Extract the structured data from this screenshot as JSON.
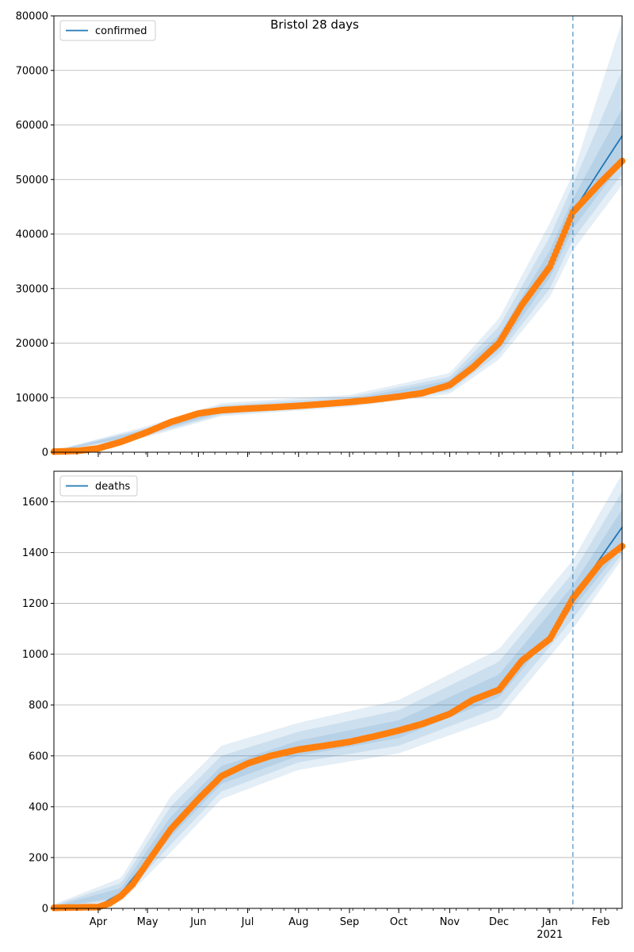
{
  "figure": {
    "title": "Bristol 28 days"
  },
  "colors": {
    "model": "#1f77b4",
    "observed": "#ff7f0e",
    "band": "#1f77b4",
    "grid": "#b0b0b0"
  },
  "x_axis": {
    "month_labels": [
      {
        "date": "2020-04-01",
        "label": "Apr"
      },
      {
        "date": "2020-05-01",
        "label": "May"
      },
      {
        "date": "2020-06-01",
        "label": "Jun"
      },
      {
        "date": "2020-07-01",
        "label": "Jul"
      },
      {
        "date": "2020-08-01",
        "label": "Aug"
      },
      {
        "date": "2020-09-01",
        "label": "Sep"
      },
      {
        "date": "2020-10-01",
        "label": "Oct"
      },
      {
        "date": "2020-11-01",
        "label": "Nov"
      },
      {
        "date": "2020-12-01",
        "label": "Dec"
      },
      {
        "date": "2021-01-01",
        "label": "Jan"
      },
      {
        "date": "2021-02-01",
        "label": "Feb"
      }
    ],
    "year_label": "2021",
    "range": [
      "2020-03-05",
      "2021-02-14"
    ]
  },
  "chart_data": [
    {
      "type": "line",
      "panel": "top",
      "title": "Bristol 28 days",
      "legend": {
        "label": "confirmed",
        "placement": "top-left"
      },
      "ylim": [
        0,
        80000
      ],
      "yticks": [
        0,
        10000,
        20000,
        30000,
        40000,
        50000,
        60000,
        70000,
        80000
      ],
      "grid": "horizontal",
      "forecast_start": "2021-01-15",
      "series": [
        {
          "name": "confirmed",
          "kind": "model",
          "points": [
            [
              "2020-03-05",
              150
            ],
            [
              "2020-03-20",
              300
            ],
            [
              "2020-04-01",
              700
            ],
            [
              "2020-04-15",
              2000
            ],
            [
              "2020-05-01",
              3800
            ],
            [
              "2020-05-15",
              5600
            ],
            [
              "2020-06-01",
              7000
            ],
            [
              "2020-06-15",
              7700
            ],
            [
              "2020-07-01",
              8100
            ],
            [
              "2020-07-15",
              8300
            ],
            [
              "2020-08-01",
              8600
            ],
            [
              "2020-08-15",
              8900
            ],
            [
              "2020-09-01",
              9300
            ],
            [
              "2020-09-15",
              9700
            ],
            [
              "2020-10-01",
              10300
            ],
            [
              "2020-10-15",
              11000
            ],
            [
              "2020-11-01",
              12500
            ],
            [
              "2020-11-15",
              15500
            ],
            [
              "2020-12-01",
              20000
            ],
            [
              "2020-12-15",
              27000
            ],
            [
              "2021-01-01",
              34000
            ],
            [
              "2021-01-15",
              44000
            ],
            [
              "2021-02-01",
              52000
            ],
            [
              "2021-02-14",
              58000
            ]
          ]
        },
        {
          "name": "",
          "kind": "observed",
          "points": [
            [
              "2020-03-05",
              100
            ],
            [
              "2020-03-20",
              250
            ],
            [
              "2020-04-01",
              700
            ],
            [
              "2020-04-15",
              1900
            ],
            [
              "2020-05-01",
              3700
            ],
            [
              "2020-05-15",
              5500
            ],
            [
              "2020-06-01",
              7100
            ],
            [
              "2020-06-15",
              7700
            ],
            [
              "2020-07-01",
              8000
            ],
            [
              "2020-07-15",
              8200
            ],
            [
              "2020-08-01",
              8500
            ],
            [
              "2020-08-15",
              8800
            ],
            [
              "2020-09-01",
              9200
            ],
            [
              "2020-09-15",
              9600
            ],
            [
              "2020-10-01",
              10200
            ],
            [
              "2020-10-15",
              10800
            ],
            [
              "2020-11-01",
              12300
            ],
            [
              "2020-11-15",
              15500
            ],
            [
              "2020-12-01",
              20000
            ],
            [
              "2020-12-15",
              27000
            ],
            [
              "2021-01-01",
              34000
            ],
            [
              "2021-01-15",
              44000
            ],
            [
              "2021-02-01",
              49500
            ],
            [
              "2021-02-14",
              53400
            ]
          ]
        }
      ],
      "bands": [
        {
          "date": "2020-03-05",
          "lower": [
            100,
            60,
            40
          ],
          "upper": [
            200,
            250,
            300
          ]
        },
        {
          "date": "2020-05-01",
          "lower": [
            3400,
            3100,
            2800
          ],
          "upper": [
            4200,
            4500,
            4800
          ]
        },
        {
          "date": "2020-06-15",
          "lower": [
            7200,
            6900,
            6600
          ],
          "upper": [
            8200,
            8600,
            9000
          ]
        },
        {
          "date": "2020-09-01",
          "lower": [
            8900,
            8600,
            8300
          ],
          "upper": [
            9700,
            10100,
            10500
          ]
        },
        {
          "date": "2020-11-01",
          "lower": [
            11800,
            11200,
            10700
          ],
          "upper": [
            13200,
            13800,
            14500
          ]
        },
        {
          "date": "2020-12-01",
          "lower": [
            18800,
            18000,
            17000
          ],
          "upper": [
            21500,
            23000,
            24500
          ]
        },
        {
          "date": "2021-01-01",
          "lower": [
            32000,
            30000,
            28500
          ],
          "upper": [
            37000,
            39500,
            42000
          ]
        },
        {
          "date": "2021-01-15",
          "lower": [
            41000,
            39000,
            37000
          ],
          "upper": [
            46500,
            49000,
            51000
          ]
        },
        {
          "date": "2021-02-14",
          "lower": [
            53000,
            51000,
            49000
          ],
          "upper": [
            63000,
            70000,
            79000
          ]
        }
      ]
    },
    {
      "type": "line",
      "panel": "bottom",
      "legend": {
        "label": "deaths",
        "placement": "top-left"
      },
      "ylim": [
        0,
        1720
      ],
      "yticks": [
        0,
        200,
        400,
        600,
        800,
        1000,
        1200,
        1400,
        1600
      ],
      "grid": "horizontal",
      "forecast_start": "2021-01-15",
      "series": [
        {
          "name": "deaths",
          "kind": "model",
          "points": [
            [
              "2020-03-05",
              5
            ],
            [
              "2020-04-01",
              10
            ],
            [
              "2020-04-15",
              60
            ],
            [
              "2020-05-01",
              190
            ],
            [
              "2020-05-15",
              320
            ],
            [
              "2020-06-01",
              430
            ],
            [
              "2020-06-15",
              520
            ],
            [
              "2020-07-01",
              570
            ],
            [
              "2020-07-15",
              600
            ],
            [
              "2020-08-01",
              625
            ],
            [
              "2020-08-15",
              640
            ],
            [
              "2020-09-01",
              655
            ],
            [
              "2020-09-15",
              675
            ],
            [
              "2020-10-01",
              700
            ],
            [
              "2020-10-15",
              725
            ],
            [
              "2020-11-01",
              765
            ],
            [
              "2020-11-15",
              810
            ],
            [
              "2020-12-01",
              870
            ],
            [
              "2020-12-15",
              960
            ],
            [
              "2021-01-01",
              1070
            ],
            [
              "2021-01-15",
              1220
            ],
            [
              "2021-02-01",
              1380
            ],
            [
              "2021-02-14",
              1500
            ]
          ]
        },
        {
          "name": "",
          "kind": "observed",
          "points": [
            [
              "2020-03-05",
              2
            ],
            [
              "2020-04-01",
              5
            ],
            [
              "2020-04-08",
              20
            ],
            [
              "2020-04-15",
              50
            ],
            [
              "2020-04-22",
              95
            ],
            [
              "2020-05-01",
              180
            ],
            [
              "2020-05-15",
              310
            ],
            [
              "2020-06-01",
              430
            ],
            [
              "2020-06-15",
              520
            ],
            [
              "2020-07-01",
              570
            ],
            [
              "2020-07-15",
              600
            ],
            [
              "2020-08-01",
              625
            ],
            [
              "2020-08-15",
              638
            ],
            [
              "2020-09-01",
              655
            ],
            [
              "2020-09-15",
              675
            ],
            [
              "2020-10-01",
              700
            ],
            [
              "2020-10-15",
              725
            ],
            [
              "2020-11-01",
              765
            ],
            [
              "2020-11-15",
              820
            ],
            [
              "2020-12-01",
              860
            ],
            [
              "2020-12-15",
              975
            ],
            [
              "2021-01-01",
              1060
            ],
            [
              "2021-01-15",
              1220
            ],
            [
              "2021-02-01",
              1360
            ],
            [
              "2021-02-14",
              1425
            ]
          ]
        }
      ],
      "bands": [
        {
          "date": "2020-03-05",
          "lower": [
            3,
            2,
            1
          ],
          "upper": [
            8,
            12,
            16
          ]
        },
        {
          "date": "2020-04-15",
          "lower": [
            45,
            35,
            25
          ],
          "upper": [
            80,
            100,
            120
          ]
        },
        {
          "date": "2020-05-15",
          "lower": [
            280,
            250,
            220
          ],
          "upper": [
            360,
            400,
            440
          ]
        },
        {
          "date": "2020-06-15",
          "lower": [
            490,
            460,
            430
          ],
          "upper": [
            560,
            600,
            640
          ]
        },
        {
          "date": "2020-08-01",
          "lower": [
            600,
            575,
            545
          ],
          "upper": [
            660,
            695,
            730
          ]
        },
        {
          "date": "2020-10-01",
          "lower": [
            670,
            640,
            610
          ],
          "upper": [
            740,
            780,
            820
          ]
        },
        {
          "date": "2020-12-01",
          "lower": [
            830,
            790,
            750
          ],
          "upper": [
            920,
            970,
            1020
          ]
        },
        {
          "date": "2021-01-15",
          "lower": [
            1180,
            1140,
            1100
          ],
          "upper": [
            1270,
            1320,
            1370
          ]
        },
        {
          "date": "2021-02-14",
          "lower": [
            1420,
            1395,
            1375
          ],
          "upper": [
            1570,
            1640,
            1710
          ]
        }
      ]
    }
  ]
}
